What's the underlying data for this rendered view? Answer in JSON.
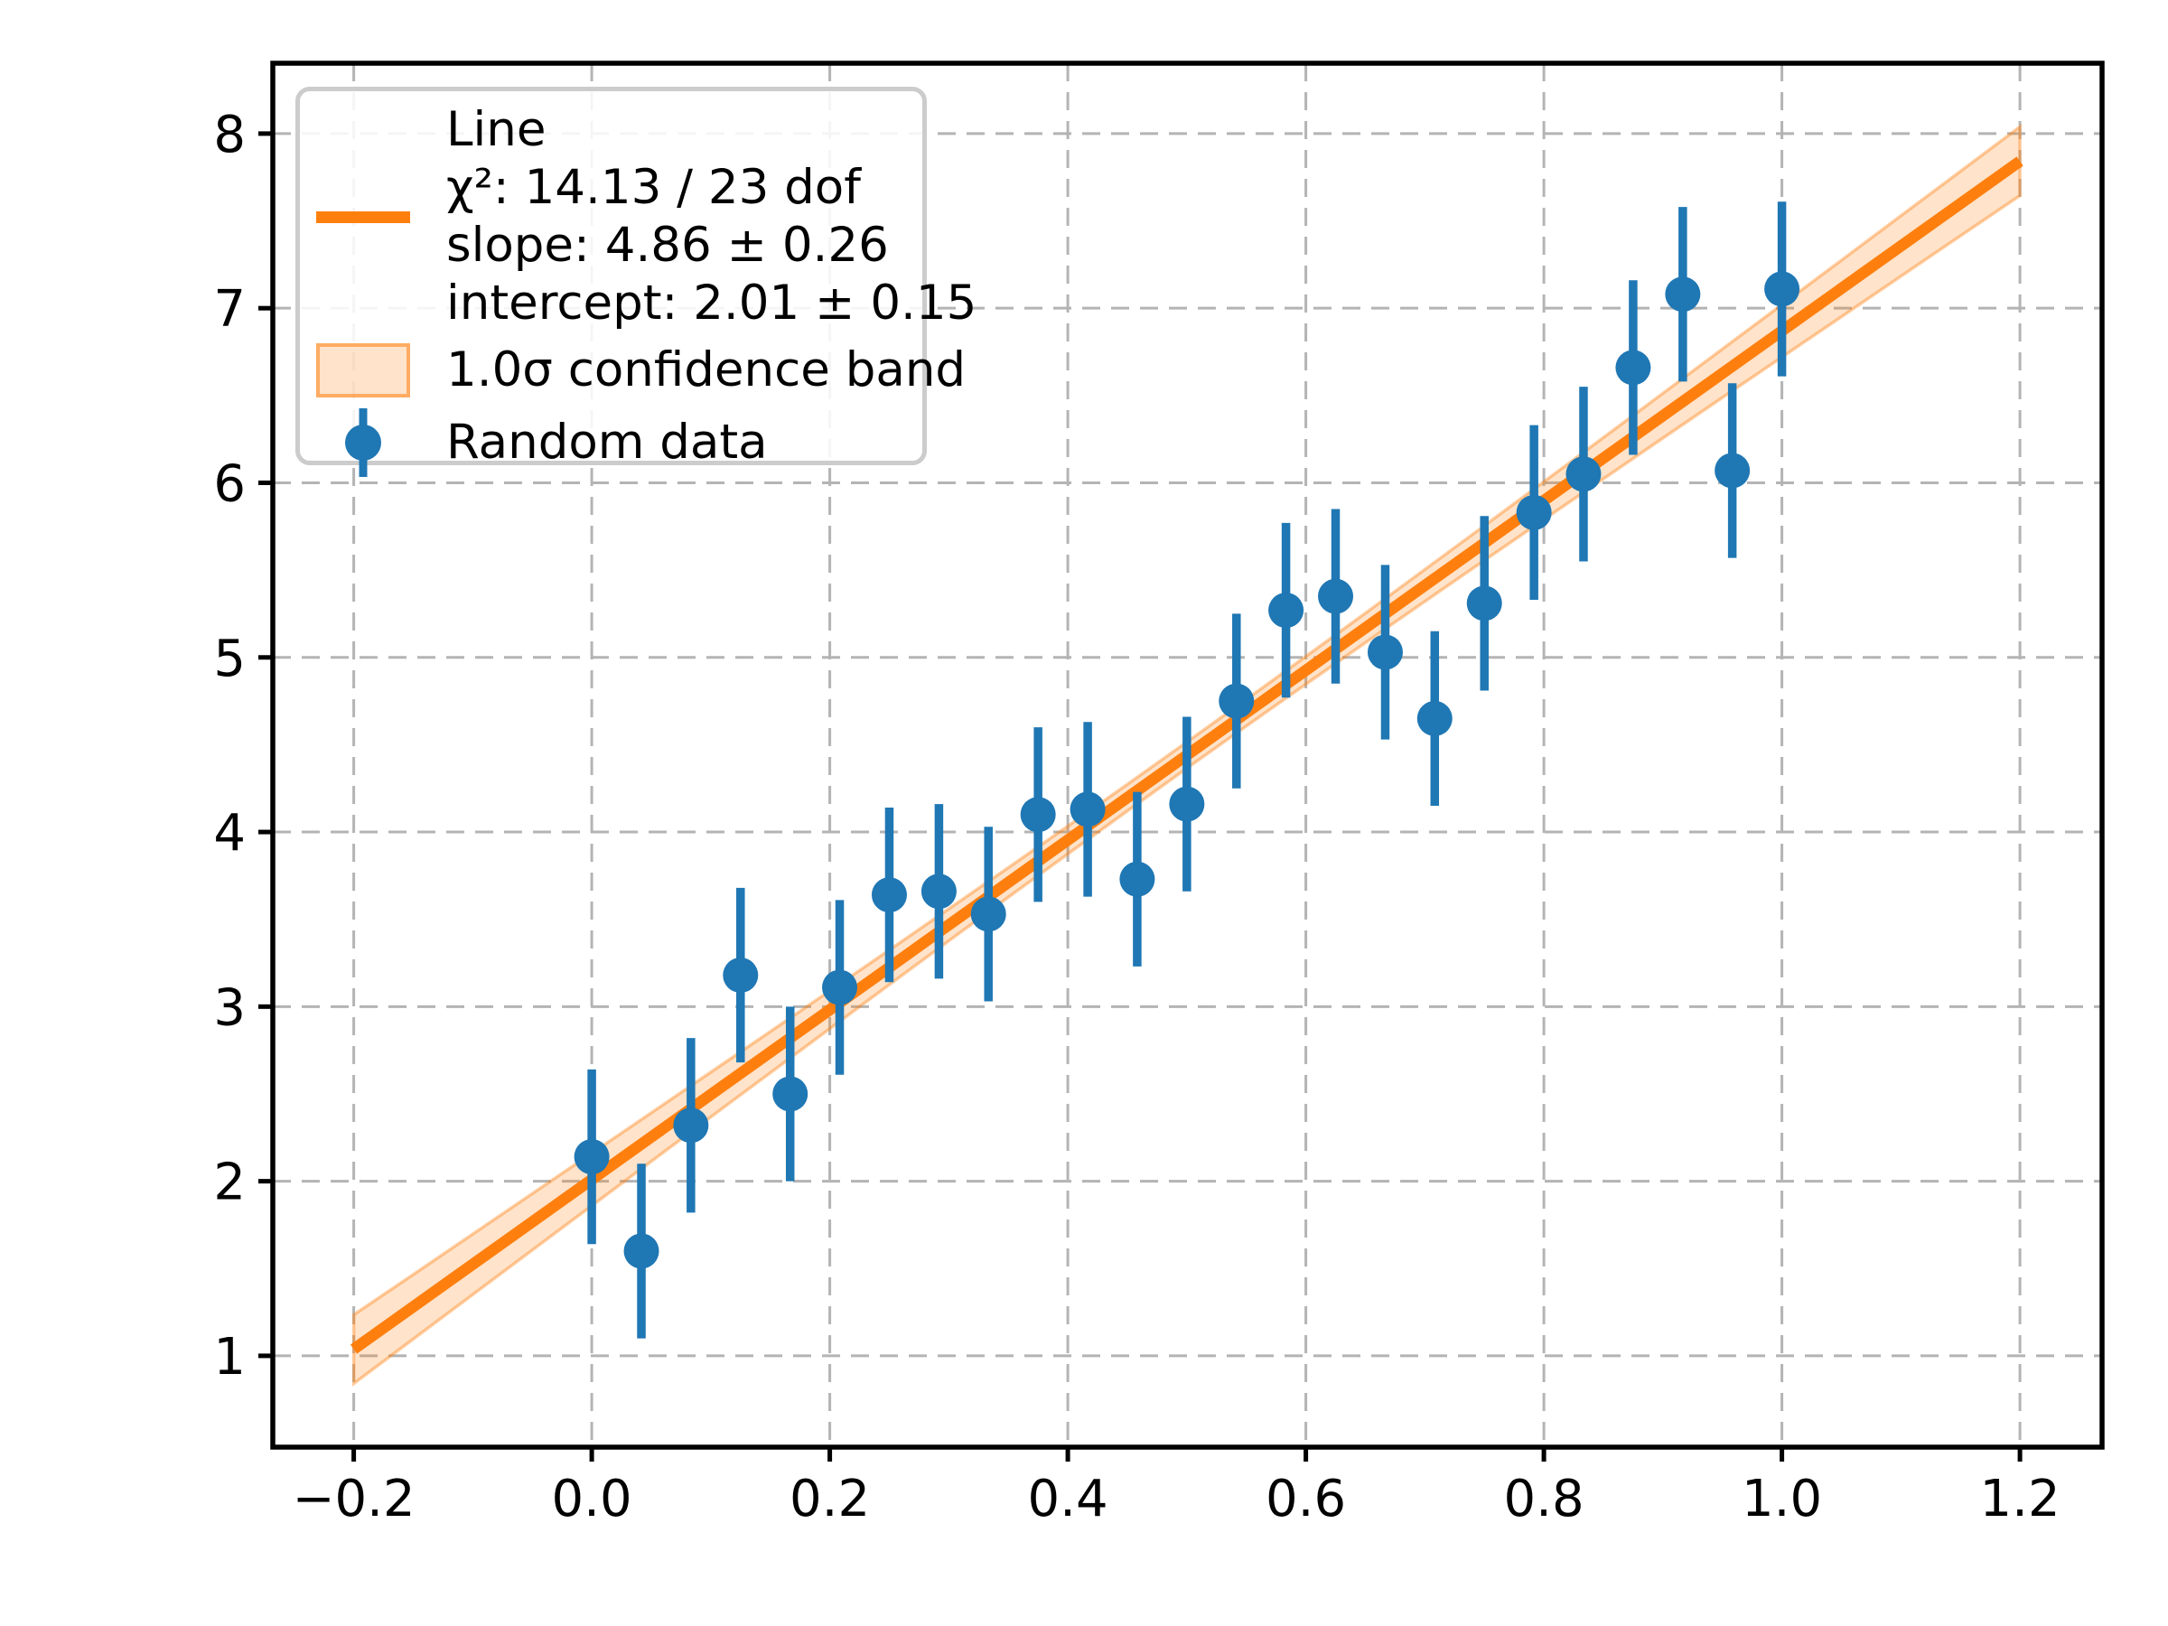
{
  "chart_data": {
    "type": "scatter",
    "title": "",
    "xlabel": "",
    "ylabel": "",
    "grid": true,
    "legend_position": "upper-left",
    "xlim": [
      -0.268,
      1.269
    ],
    "ylim": [
      0.477,
      8.403
    ],
    "xticks": [
      -0.2,
      0.0,
      0.2,
      0.4,
      0.6,
      0.8,
      1.0,
      1.2
    ],
    "xtick_labels": [
      "−0.2",
      "0.0",
      "0.2",
      "0.4",
      "0.6",
      "0.8",
      "1.0",
      "1.2"
    ],
    "yticks": [
      1,
      2,
      3,
      4,
      5,
      6,
      7,
      8
    ],
    "ytick_labels": [
      "1",
      "2",
      "3",
      "4",
      "5",
      "6",
      "7",
      "8"
    ],
    "series": [
      {
        "name": "Random data",
        "type": "scatter-errorbar",
        "x": [
          0.0,
          0.0417,
          0.0833,
          0.125,
          0.1667,
          0.2083,
          0.25,
          0.2917,
          0.3333,
          0.375,
          0.4167,
          0.4583,
          0.5,
          0.5417,
          0.5833,
          0.625,
          0.6667,
          0.7083,
          0.75,
          0.7917,
          0.8333,
          0.875,
          0.9167,
          0.9583,
          1.0
        ],
        "y": [
          2.14,
          1.6,
          2.32,
          3.18,
          2.5,
          3.11,
          3.64,
          3.66,
          3.53,
          4.1,
          4.13,
          3.73,
          4.16,
          4.75,
          5.27,
          5.35,
          5.03,
          4.65,
          5.31,
          5.83,
          6.05,
          6.66,
          7.08,
          6.07,
          7.11
        ],
        "yerr": 0.5
      }
    ],
    "fit": {
      "name": "Line",
      "slope": 4.86,
      "slope_err": 0.26,
      "intercept": 2.01,
      "intercept_err": 0.15,
      "chi2": 14.13,
      "dof": 23,
      "x_start": -0.2,
      "x_end": 1.2,
      "band_sigma": 1.0,
      "band_min_halfwidth": 0.075,
      "band_center_x": 0.5
    }
  },
  "legend": {
    "entries": [
      {
        "handle": "line",
        "label_lines": [
          "Line",
          "χ²: 14.13 / 23 dof",
          "slope: 4.86 ± 0.26",
          "intercept: 2.01 ± 0.15"
        ]
      },
      {
        "handle": "band",
        "label_lines": [
          "1.0σ confidence band"
        ]
      },
      {
        "handle": "point",
        "label_lines": [
          "Random data"
        ]
      }
    ]
  },
  "colors": {
    "point_blue": "#1f77b4",
    "line_orange": "#ff7f0e",
    "band_fill": "rgba(255,127,14,0.22)",
    "band_edge": "rgba(255,127,14,0.40)",
    "grid": "#b4b4b4",
    "spine": "#000000",
    "legend_border": "#cccccc",
    "text": "#000000"
  }
}
